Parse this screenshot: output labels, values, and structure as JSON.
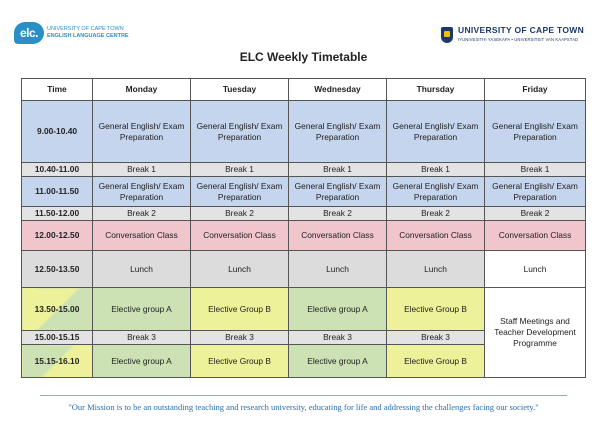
{
  "header": {
    "elc_mark": "elc.",
    "elc_line1": "UNIVERSITY OF CAPE TOWN",
    "elc_line2": "ENGLISH LANGUAGE CENTRE",
    "uct_line1": "UNIVERSITY OF CAPE TOWN",
    "uct_line2": "IYUNIVESITHI YASEKAPA • UNIVERSITEIT VAN KAAPSTAD"
  },
  "title": "ELC Weekly Timetable",
  "table": {
    "headers": [
      "Time",
      "Monday",
      "Tuesday",
      "Wednesday",
      "Thursday",
      "Friday"
    ],
    "rows": [
      {
        "time": "9.00-10.40",
        "cells": [
          "General English/ Exam Preparation",
          "General English/ Exam Preparation",
          "General English/ Exam Preparation",
          "General English/ Exam Preparation",
          "General English/ Exam Preparation"
        ]
      },
      {
        "time": "10.40-11.00",
        "cells": [
          "Break 1",
          "Break 1",
          "Break 1",
          "Break 1",
          "Break 1"
        ]
      },
      {
        "time": "11.00-11.50",
        "cells": [
          "General English/ Exam Preparation",
          "General English/ Exam Preparation",
          "General English/ Exam Preparation",
          "General English/ Exam Preparation",
          "General English/ Exam Preparation"
        ]
      },
      {
        "time": "11.50-12.00",
        "cells": [
          "Break 2",
          "Break 2",
          "Break 2",
          "Break 2",
          "Break 2"
        ]
      },
      {
        "time": "12.00-12.50",
        "cells": [
          "Conversation Class",
          "Conversation Class",
          "Conversation Class",
          "Conversation Class",
          "Conversation Class"
        ]
      },
      {
        "time": "12.50-13.50",
        "cells": [
          "Lunch",
          "Lunch",
          "Lunch",
          "Lunch",
          "Lunch"
        ]
      },
      {
        "time": "13.50-15.00",
        "cells": [
          "Elective group A",
          "Elective Group B",
          "Elective group A",
          "Elective Group B"
        ]
      },
      {
        "time": "15.00-15.15",
        "cells": [
          "Break 3",
          "Break 3",
          "Break 3",
          "Break 3"
        ]
      },
      {
        "time": "15.15-16.10",
        "cells": [
          "Elective group A",
          "Elective Group B",
          "Elective group A",
          "Elective Group B"
        ]
      }
    ],
    "friday_afternoon": "Staff Meetings and Teacher Development Programme"
  },
  "mission": "\"Our Mission is to be an outstanding teaching and research university, educating for life and addressing the challenges facing our society.\""
}
